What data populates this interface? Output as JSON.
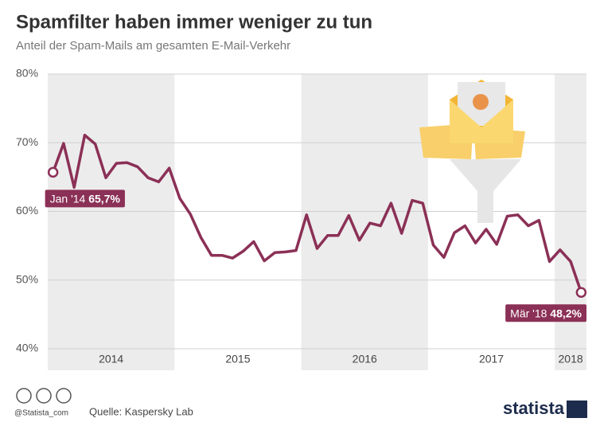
{
  "chart_data": {
    "type": "line",
    "title": "Spamfilter haben immer weniger zu tun",
    "subtitle": "Anteil der Spam-Mails am gesamten E-Mail-Verkehr",
    "categories": [
      "2014",
      null,
      null,
      null,
      null,
      null,
      null,
      null,
      null,
      null,
      null,
      null,
      "2015",
      null,
      null,
      null,
      null,
      null,
      null,
      null,
      null,
      null,
      null,
      null,
      "2016",
      null,
      null,
      null,
      null,
      null,
      null,
      null,
      null,
      null,
      null,
      null,
      "2017",
      null,
      null,
      null,
      null,
      null,
      null,
      null,
      null,
      null,
      null,
      null,
      "2018",
      null,
      null
    ],
    "values": [
      65.7,
      69.9,
      63.5,
      71.1,
      69.8,
      64.9,
      67.0,
      67.1,
      66.5,
      64.9,
      64.3,
      66.3,
      61.9,
      59.6,
      56.2,
      53.6,
      53.6,
      53.2,
      54.2,
      55.6,
      52.8,
      54.0,
      54.1,
      54.3,
      59.5,
      54.6,
      56.5,
      56.5,
      59.4,
      55.8,
      58.3,
      57.9,
      61.2,
      56.8,
      61.6,
      61.2,
      55.1,
      53.3,
      56.9,
      57.9,
      55.4,
      57.4,
      55.2,
      59.3,
      59.5,
      57.9,
      58.7,
      52.7,
      54.4,
      52.7,
      48.2
    ],
    "value_labels": [
      "65,7%",
      null,
      null,
      null,
      null,
      null,
      null,
      null,
      null,
      null,
      null,
      null,
      null,
      null,
      null,
      null,
      null,
      null,
      null,
      null,
      null,
      null,
      null,
      null,
      null,
      null,
      null,
      null,
      null,
      null,
      null,
      null,
      null,
      null,
      null,
      null,
      null,
      null,
      null,
      null,
      null,
      null,
      null,
      null,
      null,
      null,
      null,
      null,
      null,
      null,
      "48,2%"
    ],
    "point_labels": [
      "Jan '14",
      null,
      null,
      null,
      null,
      null,
      null,
      null,
      null,
      null,
      null,
      null,
      null,
      null,
      null,
      null,
      null,
      null,
      null,
      null,
      null,
      null,
      null,
      null,
      null,
      null,
      null,
      null,
      null,
      null,
      null,
      null,
      null,
      null,
      null,
      null,
      null,
      null,
      null,
      null,
      null,
      null,
      null,
      null,
      null,
      null,
      null,
      null,
      null,
      null,
      "Mär '18"
    ],
    "color": "#8b3056",
    "ylim": [
      40,
      80
    ],
    "yticks": [
      {
        "value": 40,
        "label": "40%"
      },
      {
        "value": 50,
        "label": "50%"
      },
      {
        "value": 60,
        "label": "60%"
      },
      {
        "value": 70,
        "label": "70%"
      },
      {
        "value": 80,
        "label": "80%"
      }
    ],
    "grid": true
  },
  "footer": {
    "handle": "@Statista_com",
    "source": "Quelle: Kaspersky Lab",
    "brand": "statista"
  }
}
